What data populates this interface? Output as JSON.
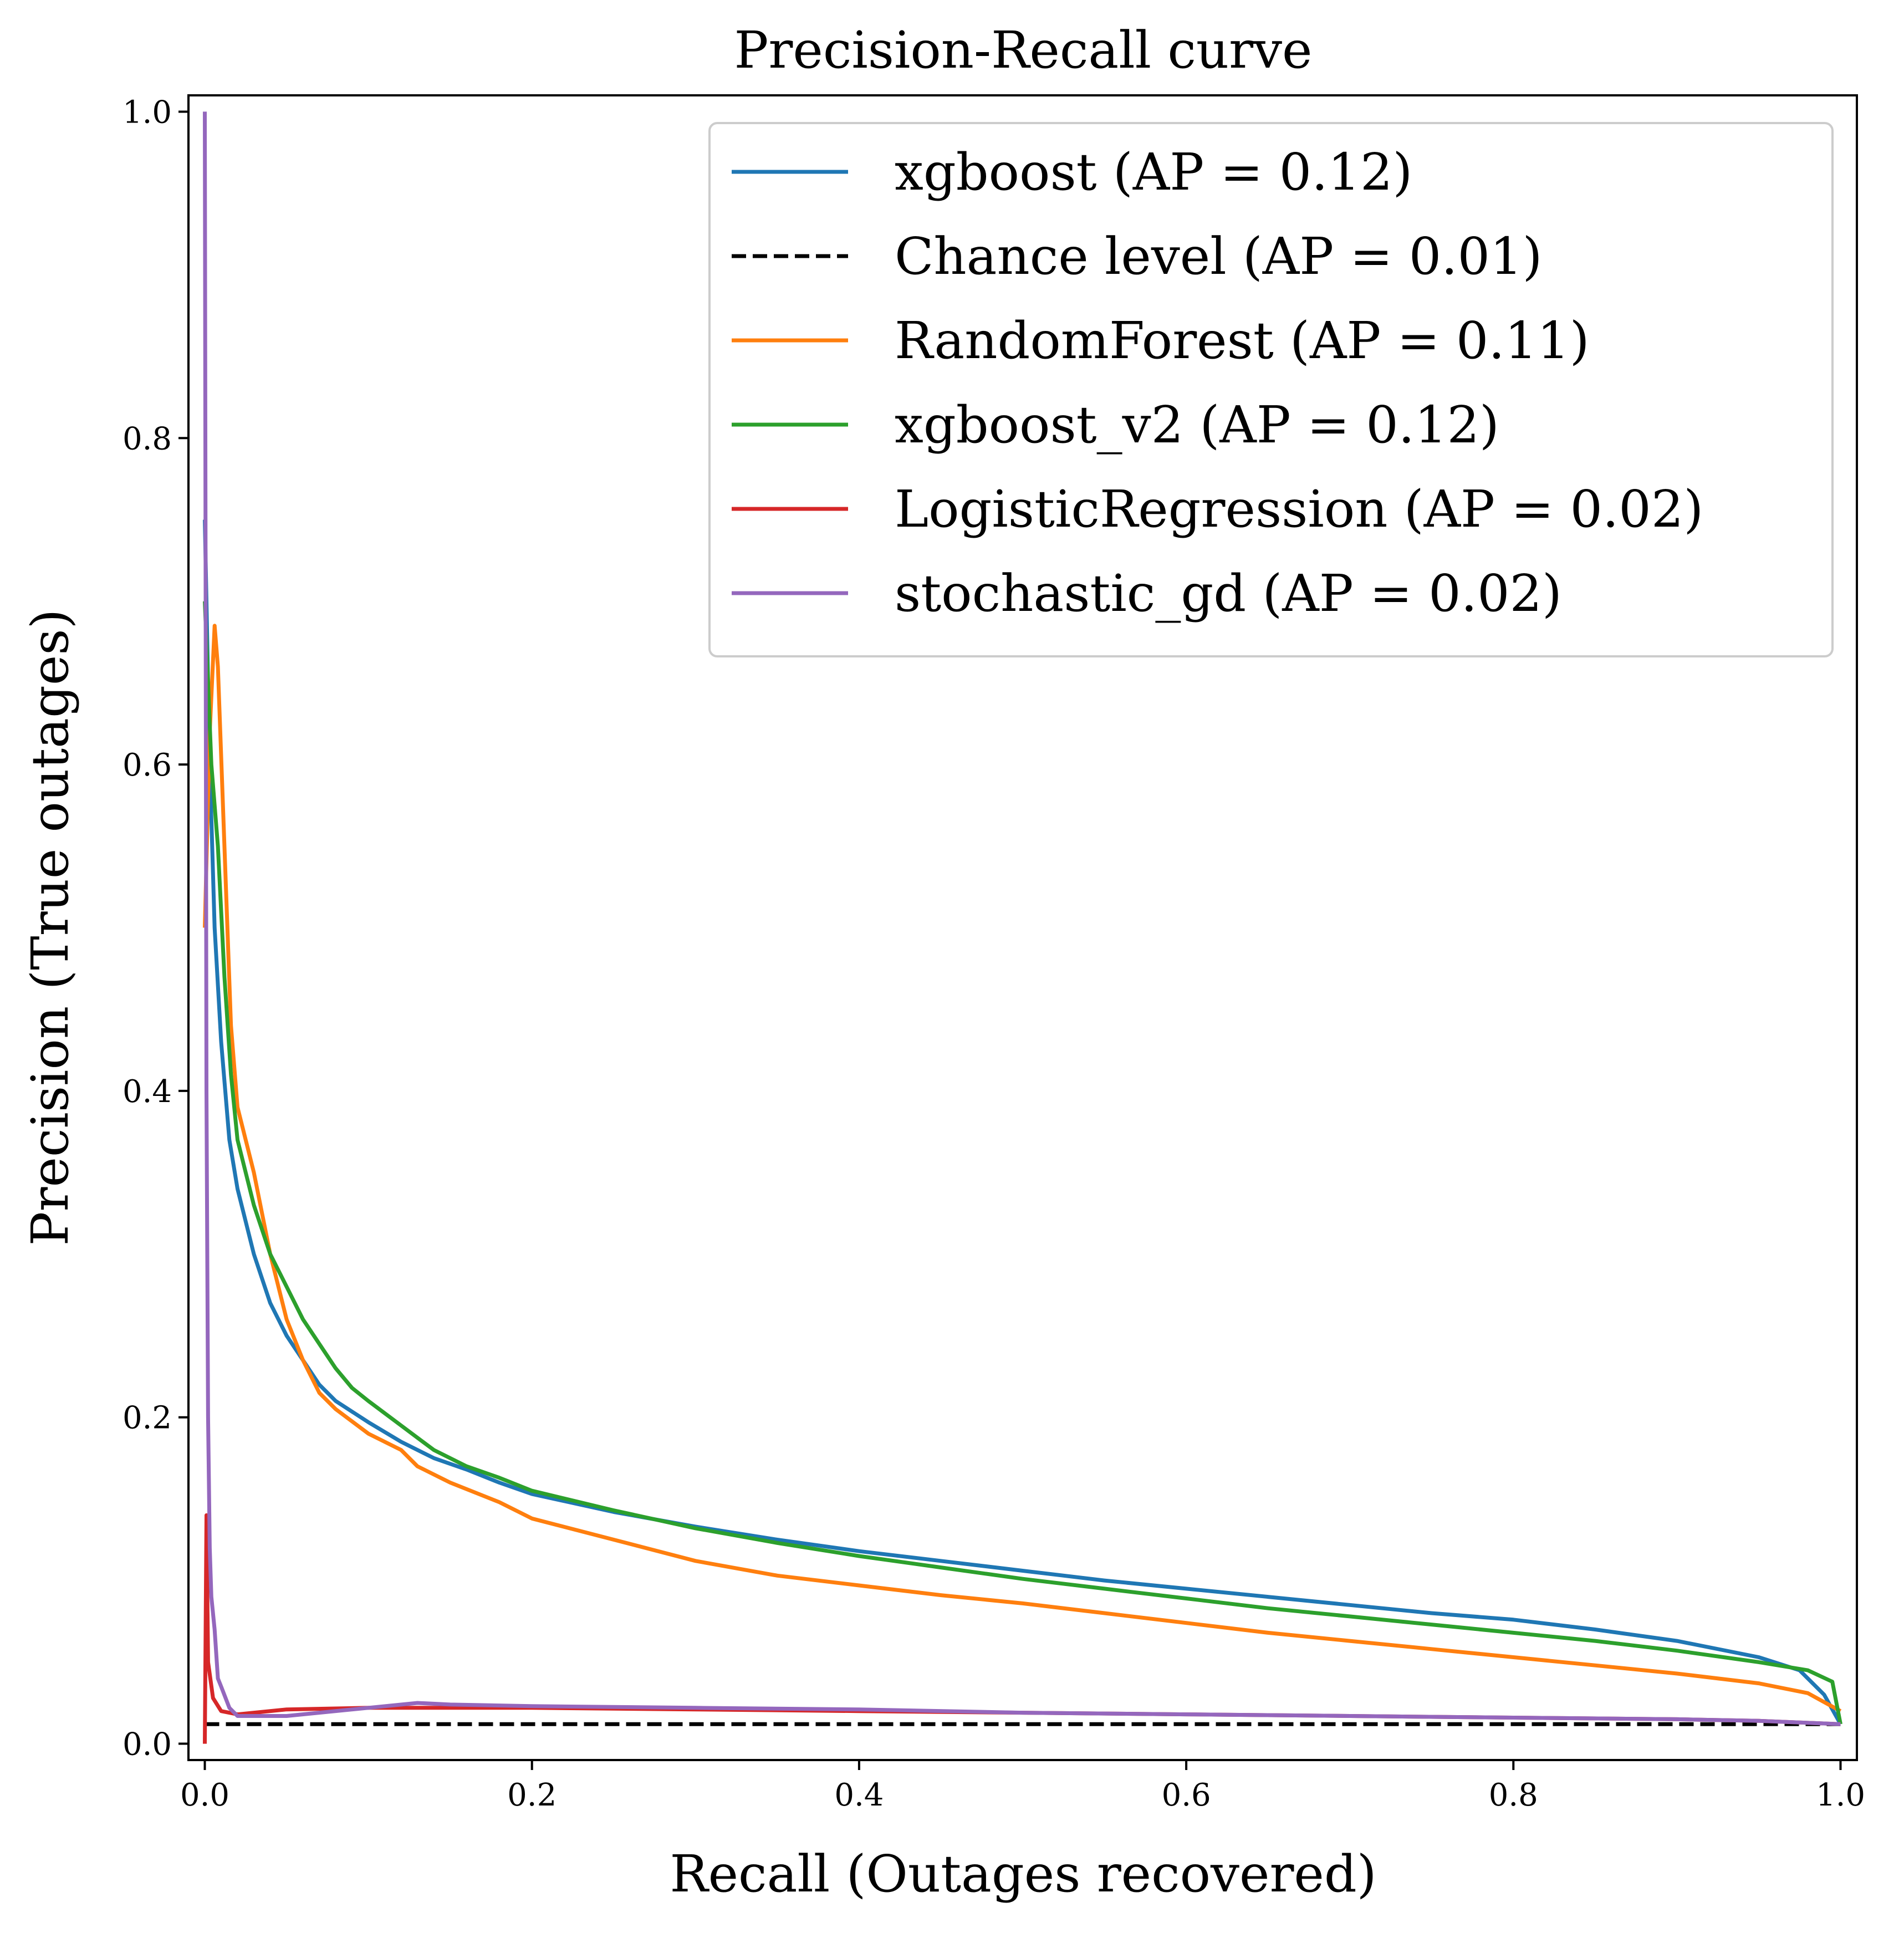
{
  "chart_data": {
    "type": "line",
    "title": "Precision-Recall curve",
    "xlabel": "Recall (Outages recovered)",
    "ylabel": "Precision (True outages)",
    "xlim": [
      -0.01,
      1.01
    ],
    "ylim": [
      -0.01,
      1.01
    ],
    "xticks": [
      0.0,
      0.2,
      0.4,
      0.6,
      0.8,
      1.0
    ],
    "yticks": [
      0.0,
      0.2,
      0.4,
      0.6,
      0.8,
      1.0
    ],
    "xtick_labels": [
      "0.0",
      "0.2",
      "0.4",
      "0.6",
      "0.8",
      "1.0"
    ],
    "ytick_labels": [
      "0.0",
      "0.2",
      "0.4",
      "0.6",
      "0.8",
      "1.0"
    ],
    "grid": false,
    "legend_position": "top-right",
    "series": [
      {
        "name": "xgboost (AP = 0.12)",
        "color": "#1f77b4",
        "dash": "solid",
        "points": [
          [
            0.0,
            0.75
          ],
          [
            0.003,
            0.6
          ],
          [
            0.006,
            0.5
          ],
          [
            0.01,
            0.43
          ],
          [
            0.015,
            0.37
          ],
          [
            0.02,
            0.34
          ],
          [
            0.03,
            0.3
          ],
          [
            0.04,
            0.27
          ],
          [
            0.05,
            0.25
          ],
          [
            0.06,
            0.235
          ],
          [
            0.07,
            0.22
          ],
          [
            0.08,
            0.21
          ],
          [
            0.1,
            0.197
          ],
          [
            0.12,
            0.185
          ],
          [
            0.14,
            0.175
          ],
          [
            0.16,
            0.168
          ],
          [
            0.18,
            0.16
          ],
          [
            0.2,
            0.153
          ],
          [
            0.25,
            0.142
          ],
          [
            0.3,
            0.133
          ],
          [
            0.35,
            0.125
          ],
          [
            0.4,
            0.118
          ],
          [
            0.45,
            0.112
          ],
          [
            0.5,
            0.106
          ],
          [
            0.55,
            0.1
          ],
          [
            0.6,
            0.095
          ],
          [
            0.65,
            0.09
          ],
          [
            0.7,
            0.085
          ],
          [
            0.75,
            0.08
          ],
          [
            0.8,
            0.076
          ],
          [
            0.85,
            0.07
          ],
          [
            0.9,
            0.063
          ],
          [
            0.95,
            0.053
          ],
          [
            0.975,
            0.045
          ],
          [
            0.99,
            0.03
          ],
          [
            1.0,
            0.012
          ]
        ]
      },
      {
        "name": "Chance level (AP = 0.01)",
        "color": "#000000",
        "dash": "dashed",
        "points": [
          [
            0.0,
            0.012
          ],
          [
            1.0,
            0.012
          ]
        ]
      },
      {
        "name": "RandomForest (AP = 0.11)",
        "color": "#ff7f0e",
        "dash": "solid",
        "points": [
          [
            0.0,
            0.5
          ],
          [
            0.003,
            0.62
          ],
          [
            0.006,
            0.685
          ],
          [
            0.008,
            0.66
          ],
          [
            0.012,
            0.55
          ],
          [
            0.016,
            0.44
          ],
          [
            0.02,
            0.39
          ],
          [
            0.03,
            0.35
          ],
          [
            0.04,
            0.3
          ],
          [
            0.05,
            0.26
          ],
          [
            0.06,
            0.235
          ],
          [
            0.07,
            0.215
          ],
          [
            0.08,
            0.205
          ],
          [
            0.1,
            0.19
          ],
          [
            0.12,
            0.18
          ],
          [
            0.13,
            0.17
          ],
          [
            0.15,
            0.16
          ],
          [
            0.18,
            0.148
          ],
          [
            0.2,
            0.138
          ],
          [
            0.25,
            0.125
          ],
          [
            0.3,
            0.112
          ],
          [
            0.35,
            0.103
          ],
          [
            0.4,
            0.097
          ],
          [
            0.45,
            0.091
          ],
          [
            0.5,
            0.086
          ],
          [
            0.55,
            0.08
          ],
          [
            0.6,
            0.074
          ],
          [
            0.65,
            0.068
          ],
          [
            0.7,
            0.063
          ],
          [
            0.75,
            0.058
          ],
          [
            0.8,
            0.053
          ],
          [
            0.85,
            0.048
          ],
          [
            0.9,
            0.043
          ],
          [
            0.95,
            0.037
          ],
          [
            0.98,
            0.031
          ],
          [
            1.0,
            0.02
          ]
        ]
      },
      {
        "name": "xgboost_v2 (AP = 0.12)",
        "color": "#2ca02c",
        "dash": "solid",
        "points": [
          [
            0.0,
            0.7
          ],
          [
            0.004,
            0.6
          ],
          [
            0.008,
            0.55
          ],
          [
            0.012,
            0.47
          ],
          [
            0.016,
            0.41
          ],
          [
            0.02,
            0.37
          ],
          [
            0.03,
            0.33
          ],
          [
            0.04,
            0.3
          ],
          [
            0.05,
            0.28
          ],
          [
            0.06,
            0.26
          ],
          [
            0.07,
            0.245
          ],
          [
            0.08,
            0.23
          ],
          [
            0.09,
            0.218
          ],
          [
            0.1,
            0.21
          ],
          [
            0.12,
            0.195
          ],
          [
            0.14,
            0.18
          ],
          [
            0.16,
            0.17
          ],
          [
            0.18,
            0.163
          ],
          [
            0.2,
            0.155
          ],
          [
            0.25,
            0.143
          ],
          [
            0.3,
            0.132
          ],
          [
            0.35,
            0.123
          ],
          [
            0.4,
            0.115
          ],
          [
            0.45,
            0.108
          ],
          [
            0.5,
            0.101
          ],
          [
            0.55,
            0.095
          ],
          [
            0.6,
            0.089
          ],
          [
            0.65,
            0.083
          ],
          [
            0.7,
            0.078
          ],
          [
            0.75,
            0.073
          ],
          [
            0.8,
            0.068
          ],
          [
            0.85,
            0.063
          ],
          [
            0.9,
            0.057
          ],
          [
            0.95,
            0.05
          ],
          [
            0.98,
            0.045
          ],
          [
            0.995,
            0.038
          ],
          [
            1.0,
            0.012
          ]
        ]
      },
      {
        "name": "LogisticRegression (AP = 0.02)",
        "color": "#d62728",
        "dash": "solid",
        "points": [
          [
            0.0,
            0.0
          ],
          [
            0.001,
            0.14
          ],
          [
            0.002,
            0.05
          ],
          [
            0.005,
            0.028
          ],
          [
            0.01,
            0.02
          ],
          [
            0.02,
            0.018
          ],
          [
            0.05,
            0.021
          ],
          [
            0.1,
            0.022
          ],
          [
            0.15,
            0.022
          ],
          [
            0.2,
            0.022
          ],
          [
            0.3,
            0.021
          ],
          [
            0.4,
            0.02
          ],
          [
            0.5,
            0.019
          ],
          [
            0.6,
            0.018
          ],
          [
            0.7,
            0.017
          ],
          [
            0.8,
            0.016
          ],
          [
            0.9,
            0.015
          ],
          [
            0.95,
            0.014
          ],
          [
            1.0,
            0.012
          ]
        ]
      },
      {
        "name": "stochastic_gd (AP = 0.02)",
        "color": "#9467bd",
        "dash": "solid",
        "points": [
          [
            0.0,
            1.0
          ],
          [
            0.001,
            0.4
          ],
          [
            0.002,
            0.2
          ],
          [
            0.003,
            0.12
          ],
          [
            0.004,
            0.09
          ],
          [
            0.006,
            0.07
          ],
          [
            0.008,
            0.04
          ],
          [
            0.01,
            0.035
          ],
          [
            0.015,
            0.022
          ],
          [
            0.02,
            0.017
          ],
          [
            0.05,
            0.017
          ],
          [
            0.1,
            0.022
          ],
          [
            0.13,
            0.025
          ],
          [
            0.15,
            0.024
          ],
          [
            0.2,
            0.023
          ],
          [
            0.3,
            0.022
          ],
          [
            0.4,
            0.021
          ],
          [
            0.5,
            0.019
          ],
          [
            0.6,
            0.018
          ],
          [
            0.7,
            0.017
          ],
          [
            0.8,
            0.016
          ],
          [
            0.9,
            0.015
          ],
          [
            0.95,
            0.014
          ],
          [
            1.0,
            0.012
          ]
        ]
      }
    ]
  }
}
